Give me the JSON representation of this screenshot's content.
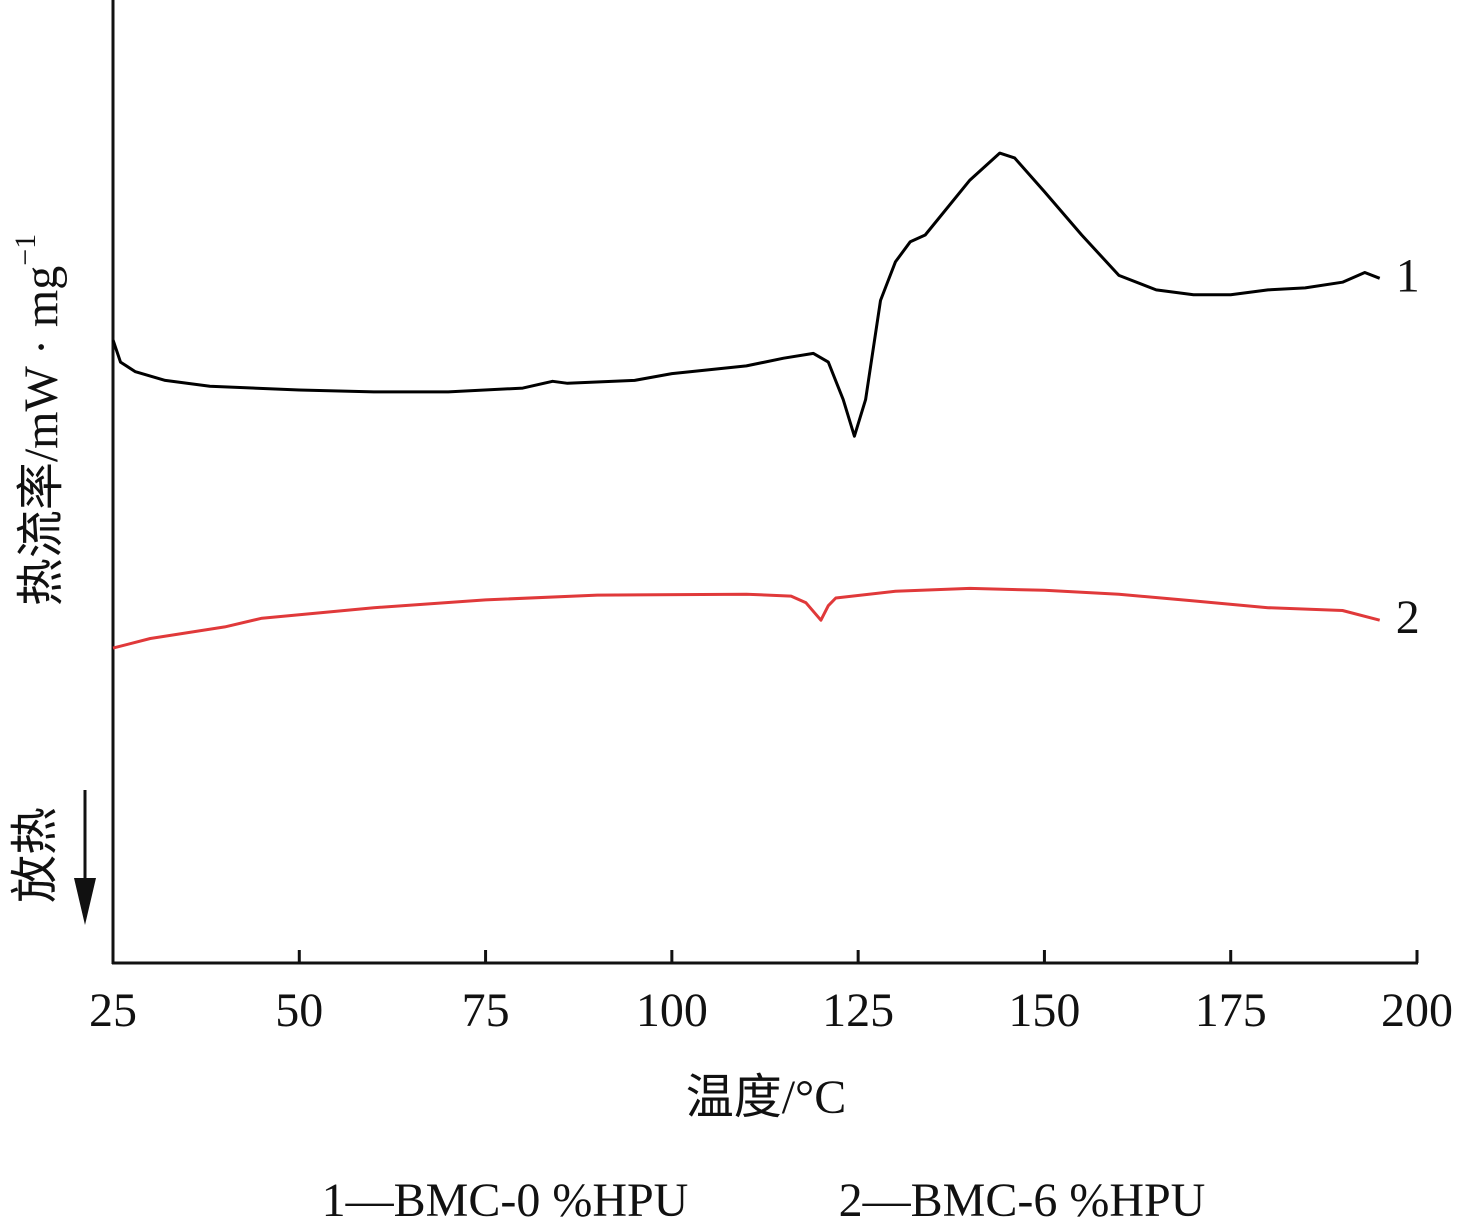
{
  "chart_data": {
    "type": "line",
    "x_label": "温度/°C",
    "y_label": "热流率/mW · mg",
    "y_label_sup": "−1",
    "direction_label": "放热",
    "caption": [
      "1—BMC-0 %HPU",
      "2—BMC-6 %HPU"
    ],
    "xlim": [
      25,
      200
    ],
    "xticks": [
      25,
      50,
      75,
      100,
      125,
      150,
      175,
      200
    ],
    "ylim": [
      0,
      100
    ],
    "series": [
      {
        "name": "1",
        "color": "#000000",
        "x": [
          25,
          26,
          28,
          32,
          38,
          50,
          60,
          70,
          80,
          84,
          86,
          95,
          100,
          110,
          115,
          119,
          121,
          123,
          124.5,
          126,
          128,
          130,
          132,
          134,
          140,
          144,
          146,
          150,
          155,
          160,
          165,
          170,
          175,
          180,
          185,
          190,
          193,
          195
        ],
        "values": [
          64.7,
          62.4,
          61.4,
          60.5,
          59.9,
          59.5,
          59.3,
          59.3,
          59.7,
          60.4,
          60.2,
          60.5,
          61.2,
          62.0,
          62.8,
          63.3,
          62.4,
          58.5,
          54.7,
          58.5,
          68.8,
          72.8,
          74.9,
          75.6,
          81.3,
          84.1,
          83.6,
          80.1,
          75.6,
          71.4,
          69.9,
          69.4,
          69.4,
          69.9,
          70.1,
          70.7,
          71.7,
          71.1
        ]
      },
      {
        "name": "2",
        "color": "#e0393a",
        "x": [
          25,
          30,
          40,
          45,
          60,
          75,
          90,
          110,
          116,
          118,
          120,
          121,
          122,
          130,
          140,
          150,
          160,
          170,
          180,
          190,
          195
        ],
        "values": [
          32.7,
          33.7,
          34.9,
          35.8,
          36.9,
          37.7,
          38.2,
          38.3,
          38.1,
          37.4,
          35.6,
          37.1,
          37.9,
          38.6,
          38.9,
          38.7,
          38.3,
          37.6,
          36.9,
          36.6,
          35.6
        ]
      }
    ]
  }
}
